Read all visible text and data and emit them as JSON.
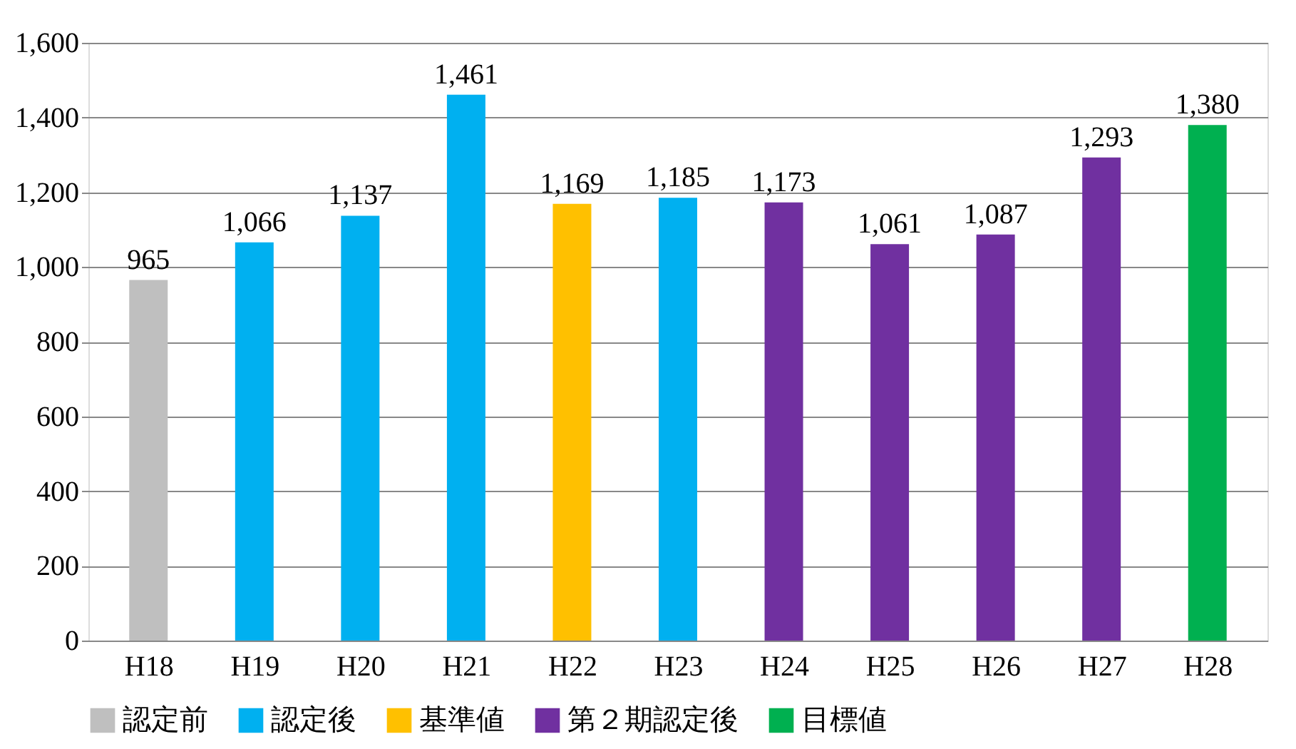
{
  "chart_data": {
    "type": "bar",
    "categories": [
      "H18",
      "H19",
      "H20",
      "H21",
      "H22",
      "H23",
      "H24",
      "H25",
      "H26",
      "H27",
      "H28"
    ],
    "series": [
      {
        "name": "認定前",
        "color": "#bfbfbf",
        "values": [
          965,
          null,
          null,
          null,
          null,
          null,
          null,
          null,
          null,
          null,
          null
        ],
        "value_labels": [
          "965",
          null,
          null,
          null,
          null,
          null,
          null,
          null,
          null,
          null,
          null
        ]
      },
      {
        "name": "認定後",
        "color": "#00b0f0",
        "values": [
          null,
          1066,
          1137,
          1461,
          null,
          1185,
          null,
          null,
          null,
          null,
          null
        ],
        "value_labels": [
          null,
          "1,066",
          "1,137",
          "1,461",
          null,
          "1,185",
          null,
          null,
          null,
          null,
          null
        ]
      },
      {
        "name": "基準値",
        "color": "#ffc000",
        "values": [
          null,
          null,
          null,
          null,
          1169,
          null,
          null,
          null,
          null,
          null,
          null
        ],
        "value_labels": [
          null,
          null,
          null,
          null,
          "1,169",
          null,
          null,
          null,
          null,
          null,
          null
        ]
      },
      {
        "name": "第２期認定後",
        "color": "#7030a0",
        "values": [
          null,
          null,
          null,
          null,
          null,
          null,
          1173,
          1061,
          1087,
          1293,
          null
        ],
        "value_labels": [
          null,
          null,
          null,
          null,
          null,
          null,
          "1,173",
          "1,061",
          "1,087",
          "1,293",
          null
        ]
      },
      {
        "name": "目標値",
        "color": "#00b050",
        "values": [
          null,
          null,
          null,
          null,
          null,
          null,
          null,
          null,
          null,
          null,
          1380
        ],
        "value_labels": [
          null,
          null,
          null,
          null,
          null,
          null,
          null,
          null,
          null,
          null,
          "1,380"
        ]
      }
    ],
    "ylim": [
      0,
      1600
    ],
    "yticks": [
      0,
      200,
      400,
      600,
      800,
      {
        "value": 1000,
        "label": "1,000"
      },
      {
        "value": 1200,
        "label": "1,200"
      },
      {
        "value": 1400,
        "label": "1,400"
      },
      {
        "value": 1600,
        "label": "1,600"
      }
    ],
    "grid": "y",
    "legend": "bottom"
  }
}
